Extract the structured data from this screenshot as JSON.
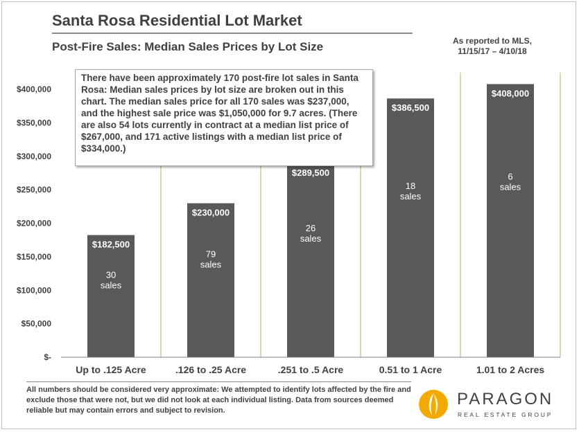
{
  "header": {
    "title": "Santa Rosa Residential Lot Market",
    "subtitle": "Post-Fire Sales: Median Sales Prices by Lot Size",
    "mls_line1": "As reported to MLS,",
    "mls_line2": "11/15/17 – 4/10/18"
  },
  "summary": {
    "text": "There have been approximately 170 post-fire lot sales in Santa Rosa: Median sales prices by lot size are broken out in this chart. The median sales price for all 170 sales was $237,000, and the highest sale price was $1,050,000 for 9.7 acres. (There are also 54 lots currently in contract at a median list price of $267,000, and 171 active listings with a median list price of $334,000.)"
  },
  "footer": {
    "disclaimer": "All numbers should be considered very approximate: We attempted to identify lots affected by the fire and exclude those that were not, but we did not look at each individual listing. Data from sources deemed reliable but may contain errors and subject to revision."
  },
  "logo": {
    "name": "PARAGON",
    "tagline": "REAL ESTATE GROUP",
    "primary_color": "#f2a900"
  },
  "chart_data": {
    "type": "bar",
    "categories": [
      "Up to .125 Acre",
      ".126 to .25 Acre",
      ".251 to .5 Acre",
      "0.51 to 1 Acre",
      "1.01 to 2 Acres"
    ],
    "values": [
      182500,
      230000,
      289500,
      386500,
      408000
    ],
    "value_labels": [
      "$182,500",
      "$230,000",
      "$289,500",
      "$386,500",
      "$408,000"
    ],
    "sales_counts": [
      "30",
      "79",
      "26",
      "18",
      "6"
    ],
    "sales_word": "sales",
    "ylim": [
      0,
      425000
    ],
    "yticks": [
      0,
      50000,
      100000,
      150000,
      200000,
      250000,
      300000,
      350000,
      400000
    ],
    "ytick_labels": [
      "$-",
      "$50,000",
      "$100,000",
      "$150,000",
      "$200,000",
      "$250,000",
      "$300,000",
      "$350,000",
      "$400,000"
    ],
    "title": "",
    "xlabel": "",
    "ylabel": "",
    "bar_color": "#595959",
    "divider_color": "#9bbb59",
    "grid": false
  }
}
